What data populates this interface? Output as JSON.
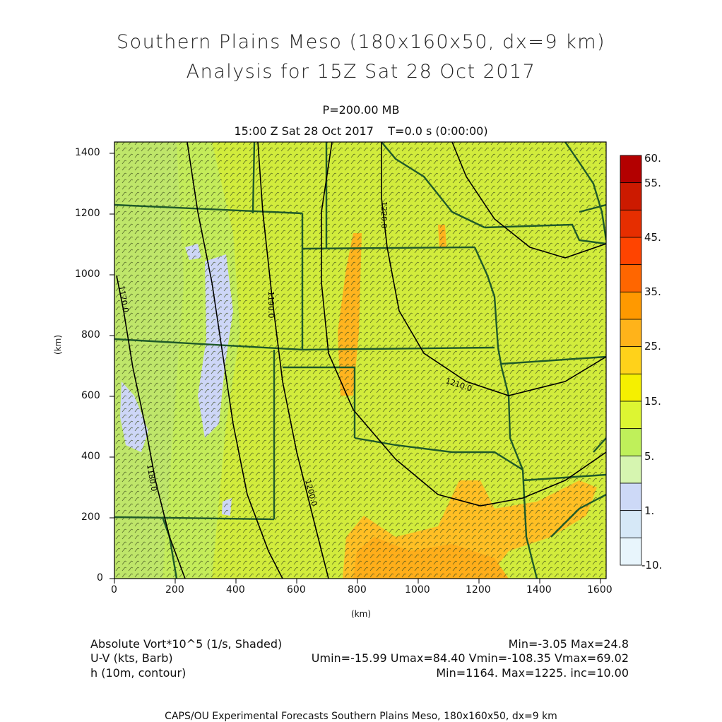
{
  "title_line1": "Southern Plains Meso (180x160x50, dx=9 km)",
  "title_line2": "Analysis for 15Z Sat 28 Oct 2017",
  "level": "P=200.00 MB",
  "valid_time": "15:00 Z Sat 28 Oct 2017    T=0.0 s (0:00:00)",
  "x_axis": {
    "label": "(km)",
    "ticks": [
      "0",
      "200",
      "400",
      "600",
      "800",
      "1000",
      "1200",
      "1400",
      "1600"
    ]
  },
  "y_axis": {
    "label": "(km)",
    "ticks": [
      "0",
      "200",
      "400",
      "600",
      "800",
      "1000",
      "1200",
      "1400"
    ]
  },
  "colorbar": {
    "labels": [
      "60.",
      "55.",
      "45.",
      "35.",
      "25.",
      "15.",
      "5.",
      "1.",
      "-10."
    ],
    "colors": [
      "#b30000",
      "#cc1a00",
      "#e62e00",
      "#ff4400",
      "#ff6600",
      "#ff9900",
      "#ffb31a",
      "#ffd21a",
      "#f5f000",
      "#ddf532",
      "#bff05a",
      "#d6f5b0",
      "#cdd9f7",
      "#d6e8f7",
      "#e8f5fc"
    ]
  },
  "contours": [
    {
      "label": "1170.0"
    },
    {
      "label": "1180.0"
    },
    {
      "label": "1190.0"
    },
    {
      "label": "1200.0"
    },
    {
      "label": "1210.0"
    },
    {
      "label": "1220.0"
    }
  ],
  "footer": {
    "field1": "Absolute Vort*10^5 (1/s, Shaded)",
    "field1_stats": "Min=-3.05 Max=24.8",
    "field2": "U-V (kts, Barb)",
    "field2_stats": "Umin=-15.99 Umax=84.40 Vmin=-108.35 Vmax=69.02",
    "field3": "h (10m, contour)",
    "field3_stats": "Min=1164. Max=1225. inc=10.00"
  },
  "credit": "CAPS/OU Experimental Forecasts  Southern Plains Meso, 180x160x50, dx=9 km",
  "colors": {
    "base_field": "#d2ec3c",
    "high_vort": "#ffc21a",
    "low_vort": "#cdd6f7",
    "boundary": "#1f5a2a",
    "contour": "#000000"
  }
}
